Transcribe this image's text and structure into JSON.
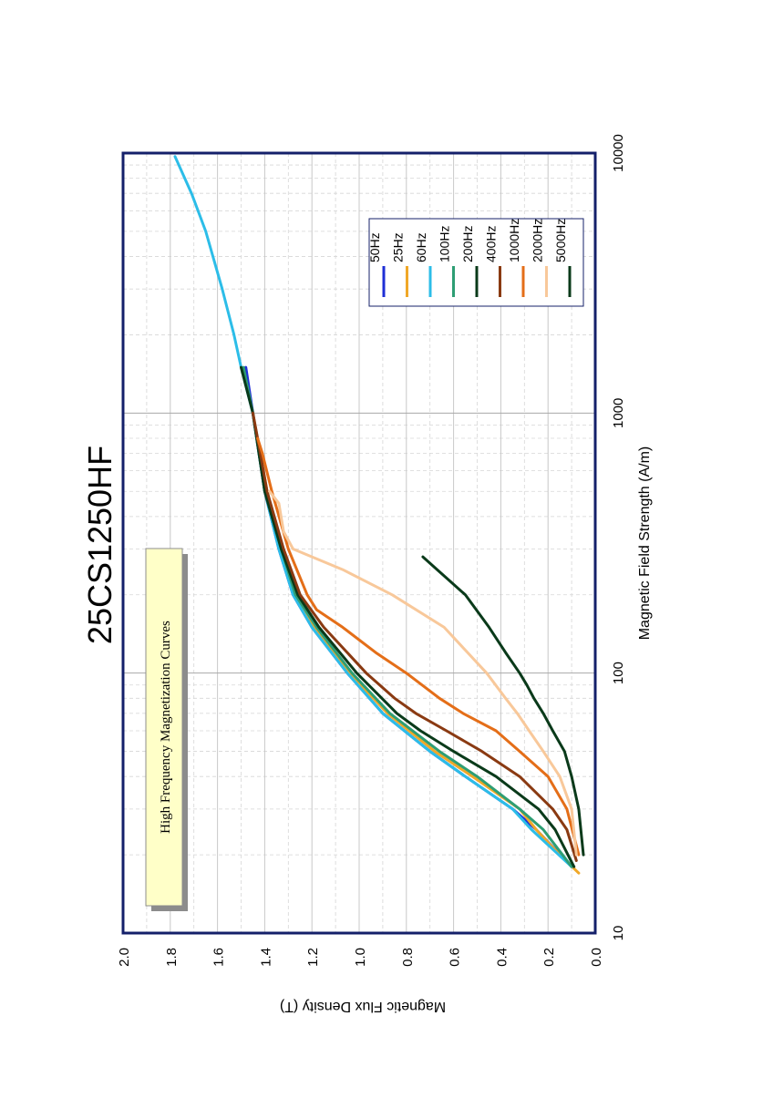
{
  "chart_data": {
    "type": "line",
    "title": "25CS1250HF",
    "annotation": "High Frequency Magnetization Curves",
    "xlabel": "Magnetic Field Strength (A/m)",
    "ylabel": "Magnetic Flux Density (T)",
    "xscale": "log",
    "xlim": [
      10,
      10000
    ],
    "ylim": [
      0,
      2
    ],
    "xticks": [
      "10",
      "100",
      "1000",
      "10000"
    ],
    "yticks": [
      "0.0",
      "0.2",
      "0.4",
      "0.6",
      "0.8",
      "1.0",
      "1.2",
      "1.4",
      "1.6",
      "1.8",
      "2.0"
    ],
    "grid": true,
    "legend_position": "top-right",
    "colors": {
      "frame": "#14206a",
      "annotation_box": "#ffffc8",
      "grid": "#c8c8c8"
    },
    "series": [
      {
        "name": "50Hz",
        "color": "#1f2fd6",
        "points": [
          [
            18,
            0.1
          ],
          [
            25,
            0.25
          ],
          [
            30,
            0.35
          ],
          [
            40,
            0.55
          ],
          [
            50,
            0.7
          ],
          [
            70,
            0.9
          ],
          [
            100,
            1.05
          ],
          [
            150,
            1.2
          ],
          [
            200,
            1.28
          ],
          [
            300,
            1.34
          ],
          [
            500,
            1.4
          ],
          [
            1000,
            1.45
          ],
          [
            1500,
            1.48
          ]
        ]
      },
      {
        "name": "25Hz",
        "color": "#f0a828",
        "points": [
          [
            17,
            0.07
          ],
          [
            20,
            0.15
          ],
          [
            25,
            0.25
          ],
          [
            30,
            0.32
          ],
          [
            40,
            0.52
          ],
          [
            50,
            0.68
          ],
          [
            70,
            0.88
          ],
          [
            100,
            1.04
          ],
          [
            150,
            1.19
          ],
          [
            200,
            1.27
          ],
          [
            300,
            1.33
          ],
          [
            500,
            1.39
          ],
          [
            1000,
            1.45
          ]
        ]
      },
      {
        "name": "60Hz",
        "color": "#2cbde8",
        "points": [
          [
            18,
            0.1
          ],
          [
            25,
            0.27
          ],
          [
            30,
            0.35
          ],
          [
            40,
            0.55
          ],
          [
            50,
            0.7
          ],
          [
            70,
            0.9
          ],
          [
            100,
            1.05
          ],
          [
            150,
            1.2
          ],
          [
            200,
            1.28
          ],
          [
            300,
            1.34
          ],
          [
            500,
            1.4
          ],
          [
            1000,
            1.45
          ],
          [
            1500,
            1.5
          ],
          [
            2000,
            1.53
          ],
          [
            3000,
            1.58
          ],
          [
            5000,
            1.65
          ],
          [
            7000,
            1.71
          ],
          [
            9700,
            1.78
          ]
        ]
      },
      {
        "name": "100Hz",
        "color": "#2e9e74",
        "points": [
          [
            18,
            0.1
          ],
          [
            25,
            0.22
          ],
          [
            30,
            0.32
          ],
          [
            40,
            0.5
          ],
          [
            50,
            0.66
          ],
          [
            70,
            0.87
          ],
          [
            100,
            1.03
          ],
          [
            150,
            1.18
          ],
          [
            200,
            1.27
          ],
          [
            300,
            1.33
          ],
          [
            500,
            1.4
          ],
          [
            1000,
            1.45
          ],
          [
            1500,
            1.49
          ]
        ]
      },
      {
        "name": "200Hz",
        "color": "#0a3a1a",
        "points": [
          [
            18,
            0.09
          ],
          [
            25,
            0.17
          ],
          [
            30,
            0.24
          ],
          [
            40,
            0.42
          ],
          [
            50,
            0.6
          ],
          [
            60,
            0.74
          ],
          [
            70,
            0.84
          ],
          [
            100,
            1.01
          ],
          [
            150,
            1.17
          ],
          [
            200,
            1.26
          ],
          [
            300,
            1.33
          ],
          [
            500,
            1.4
          ],
          [
            1000,
            1.45
          ],
          [
            1500,
            1.5
          ]
        ]
      },
      {
        "name": "400Hz",
        "color": "#8a3a12",
        "points": [
          [
            19,
            0.08
          ],
          [
            25,
            0.12
          ],
          [
            30,
            0.18
          ],
          [
            40,
            0.32
          ],
          [
            50,
            0.48
          ],
          [
            60,
            0.63
          ],
          [
            70,
            0.76
          ],
          [
            80,
            0.85
          ],
          [
            100,
            0.97
          ],
          [
            150,
            1.15
          ],
          [
            200,
            1.25
          ],
          [
            300,
            1.32
          ],
          [
            500,
            1.39
          ],
          [
            800,
            1.43
          ],
          [
            1000,
            1.45
          ]
        ]
      },
      {
        "name": "1000Hz",
        "color": "#e46e18",
        "points": [
          [
            20,
            0.07
          ],
          [
            30,
            0.12
          ],
          [
            40,
            0.2
          ],
          [
            50,
            0.32
          ],
          [
            60,
            0.42
          ],
          [
            70,
            0.56
          ],
          [
            80,
            0.66
          ],
          [
            100,
            0.8
          ],
          [
            120,
            0.93
          ],
          [
            150,
            1.07
          ],
          [
            175,
            1.18
          ],
          [
            200,
            1.22
          ],
          [
            300,
            1.3
          ],
          [
            500,
            1.37
          ],
          [
            700,
            1.41
          ],
          [
            800,
            1.43
          ]
        ]
      },
      {
        "name": "2000Hz",
        "color": "#f8c89a",
        "points": [
          [
            20,
            0.08
          ],
          [
            30,
            0.1
          ],
          [
            40,
            0.15
          ],
          [
            50,
            0.22
          ],
          [
            60,
            0.28
          ],
          [
            70,
            0.33
          ],
          [
            80,
            0.38
          ],
          [
            100,
            0.46
          ],
          [
            150,
            0.64
          ],
          [
            200,
            0.86
          ],
          [
            250,
            1.07
          ],
          [
            300,
            1.28
          ],
          [
            350,
            1.32
          ],
          [
            450,
            1.34
          ],
          [
            500,
            1.38
          ]
        ]
      },
      {
        "name": "5000Hz",
        "color": "#0a3a1a",
        "points": [
          [
            20,
            0.05
          ],
          [
            30,
            0.07
          ],
          [
            40,
            0.1
          ],
          [
            50,
            0.13
          ],
          [
            60,
            0.18
          ],
          [
            70,
            0.22
          ],
          [
            80,
            0.26
          ],
          [
            90,
            0.29
          ],
          [
            100,
            0.32
          ],
          [
            120,
            0.38
          ],
          [
            150,
            0.45
          ],
          [
            200,
            0.55
          ],
          [
            250,
            0.67
          ],
          [
            280,
            0.73
          ]
        ]
      }
    ]
  }
}
